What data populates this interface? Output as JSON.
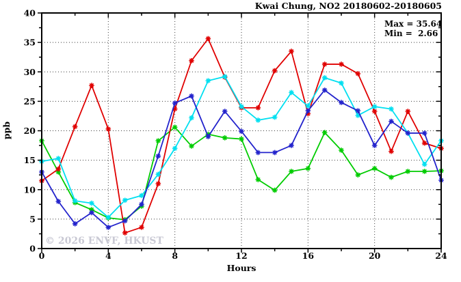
{
  "chart_data": {
    "type": "line",
    "title": "Kwai Chung, NO2 20180602-20180605",
    "xlabel": "Hours",
    "ylabel": "ppb",
    "xlim": [
      0,
      24
    ],
    "ylim": [
      0,
      40
    ],
    "xticks_major": [
      0,
      4,
      8,
      12,
      16,
      20,
      24
    ],
    "xticks_minor": [
      2,
      6,
      10,
      14,
      18,
      22
    ],
    "yticks_major": [
      0,
      5,
      10,
      15,
      20,
      25,
      30,
      35,
      40
    ],
    "yticks_minor": [
      2.5,
      7.5,
      12.5,
      17.5,
      22.5,
      27.5,
      32.5,
      37.5
    ],
    "grid": "dotted-at-major-ticks",
    "legend": "none",
    "annotations": {
      "max_label": "Max = 35.64",
      "min_label": "Min =  2.66"
    },
    "watermark": "© 2026 ENVF, HKUST",
    "x": [
      0,
      1,
      2,
      3,
      4,
      5,
      6,
      7,
      8,
      9,
      10,
      11,
      12,
      13,
      14,
      15,
      16,
      17,
      18,
      19,
      20,
      21,
      22,
      23,
      24
    ],
    "series": [
      {
        "name": "red",
        "color": "#e00000",
        "values": [
          11.5,
          13.5,
          20.7,
          27.7,
          20.3,
          2.66,
          3.6,
          11.0,
          23.7,
          31.9,
          35.64,
          29.1,
          23.9,
          23.9,
          30.2,
          33.5,
          22.9,
          31.3,
          31.3,
          29.7,
          23.3,
          16.5,
          23.3,
          17.9,
          17.0
        ]
      },
      {
        "name": "blue",
        "color": "#2323cc",
        "values": [
          13.0,
          8.0,
          4.2,
          6.1,
          3.6,
          4.7,
          7.5,
          15.7,
          24.7,
          25.9,
          19.0,
          23.3,
          19.9,
          16.3,
          16.3,
          17.5,
          23.4,
          26.9,
          24.8,
          23.4,
          17.5,
          21.6,
          19.6,
          19.6,
          11.6
        ]
      },
      {
        "name": "cyan",
        "color": "#00dff0",
        "values": [
          14.8,
          15.3,
          8.1,
          7.7,
          5.3,
          8.2,
          9.0,
          12.6,
          17.0,
          22.2,
          28.5,
          29.2,
          24.1,
          21.8,
          22.3,
          26.5,
          24.2,
          29.0,
          28.1,
          22.6,
          24.1,
          23.7,
          19.6,
          14.3,
          18.3
        ]
      },
      {
        "name": "green",
        "color": "#00cc00",
        "values": [
          18.3,
          13.0,
          7.8,
          6.6,
          5.2,
          4.9,
          7.2,
          18.3,
          20.6,
          17.4,
          19.4,
          18.8,
          18.6,
          11.7,
          9.9,
          13.1,
          13.6,
          19.7,
          16.7,
          12.5,
          13.6,
          12.1,
          13.1,
          13.1,
          13.2
        ]
      }
    ],
    "max_value": 35.64,
    "min_value": 2.66
  }
}
